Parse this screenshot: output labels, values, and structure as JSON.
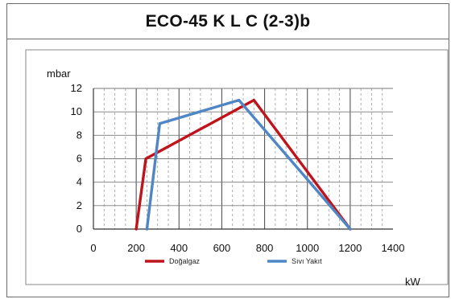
{
  "header": {
    "title": "ECO-45 K L C (2-3)b"
  },
  "colors": {
    "series_1": "#c0141c",
    "series_2": "#4f86c6",
    "grid": "#9a9a9a",
    "axis": "#333333"
  },
  "chart_data": {
    "type": "line",
    "title": "",
    "ylabel": "mbar",
    "xlabel": "kW",
    "xlim": [
      0,
      1400
    ],
    "ylim": [
      0,
      12
    ],
    "xticks": [
      0,
      200,
      400,
      600,
      800,
      1000,
      1200,
      1400
    ],
    "yticks": [
      0,
      2,
      4,
      6,
      8,
      10,
      12
    ],
    "grid": "dashed vertical minor lines, solid horizontal lines",
    "legend_position": "bottom",
    "series": [
      {
        "name": "Doğalgaz",
        "color": "#c0141c",
        "x": [
          200,
          245,
          750,
          1200
        ],
        "y": [
          0,
          6,
          11,
          0
        ]
      },
      {
        "name": "Sıvı Yakıt",
        "color": "#4f86c6",
        "x": [
          250,
          310,
          680,
          1200
        ],
        "y": [
          0,
          9,
          11,
          0
        ]
      }
    ]
  }
}
